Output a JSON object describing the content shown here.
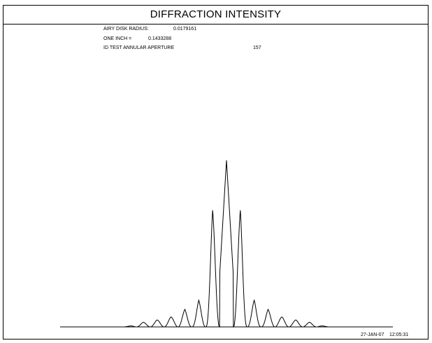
{
  "header": {
    "title": "DIFFRACTION INTENSITY"
  },
  "info": {
    "airy_label": "AIRY DISK RADIUS:",
    "airy_value": "0.0179161",
    "inch_label": "ONE INCH =",
    "inch_value": "0.1433288",
    "id_label": "ID TEST ANNULAR APERTURE",
    "id_value": "157"
  },
  "footer": {
    "date": "27-JAN-07",
    "time": "12:05:31"
  },
  "colors": {
    "line": "#000000",
    "background": "#ffffff"
  },
  "chart_data": {
    "type": "line",
    "title": "DIFFRACTION INTENSITY",
    "xlabel": "",
    "ylabel": "",
    "grid": false,
    "xlim": [
      -12,
      12
    ],
    "ylim": [
      0,
      1
    ],
    "series": [
      {
        "x": [
          -12,
          -11.5,
          -11,
          -10.5,
          -10,
          -9.5,
          -9,
          -8.5,
          -8,
          -7.5,
          -7,
          -6.5,
          -6,
          -5.5,
          -5,
          -4.5,
          -4,
          -3.5,
          -3,
          -2.5,
          -2,
          -1.5,
          -1,
          -0.5,
          0,
          0.5,
          1,
          1.5,
          2,
          2.5,
          3,
          3.5,
          4,
          4.5,
          5,
          5.5,
          6,
          6.5,
          7,
          7.5,
          8,
          8.5,
          9,
          9.5,
          10,
          10.5,
          11,
          11.5,
          12
        ],
        "values": [
          0,
          0,
          0,
          0,
          0,
          0,
          0,
          0,
          0,
          0,
          0.005,
          0.012,
          0.028,
          0.022,
          0.042,
          0.03,
          0.06,
          0.045,
          0.105,
          0.02,
          0.16,
          0.05,
          0.7,
          0.3,
          1,
          0.3,
          0.7,
          0.05,
          0.16,
          0.02,
          0.105,
          0.045,
          0.06,
          0.03,
          0.042,
          0.022,
          0.028,
          0.012,
          0.005,
          0,
          0,
          0,
          0,
          0,
          0,
          0,
          0,
          0,
          0
        ]
      }
    ]
  }
}
